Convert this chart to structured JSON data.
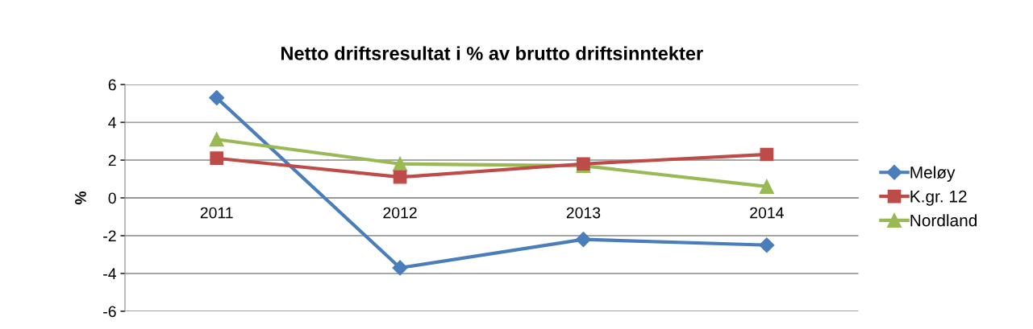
{
  "chart_data": {
    "type": "line",
    "title": "Netto driftsresultat i % av brutto driftsinntekter",
    "ylabel": "%",
    "categories": [
      "2011",
      "2012",
      "2013",
      "2014"
    ],
    "series": [
      {
        "name": "Meløy",
        "color": "#4a7ebb",
        "marker": "diamond",
        "values": [
          5.3,
          -3.7,
          -2.2,
          -2.5
        ]
      },
      {
        "name": "K.gr. 12",
        "color": "#be4b48",
        "marker": "square",
        "values": [
          2.1,
          1.1,
          1.8,
          2.3
        ]
      },
      {
        "name": "Nordland",
        "color": "#98b954",
        "marker": "triangle",
        "values": [
          3.1,
          1.8,
          1.7,
          0.6
        ]
      }
    ],
    "ylim": [
      -6,
      6
    ],
    "yticks": [
      -6,
      -4,
      -2,
      0,
      2,
      4,
      6
    ],
    "grid": "y",
    "legend": "right",
    "line_style": "solid"
  }
}
